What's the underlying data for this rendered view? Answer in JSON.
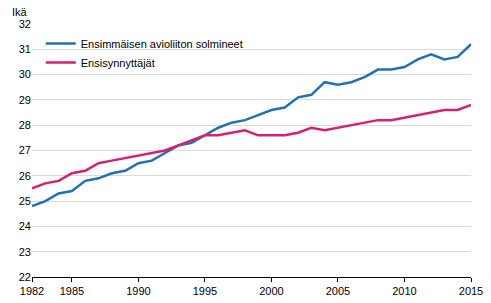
{
  "chart_data": {
    "type": "line",
    "y_label": "Ikä",
    "x": [
      1982,
      1983,
      1984,
      1985,
      1986,
      1987,
      1988,
      1989,
      1990,
      1991,
      1992,
      1993,
      1994,
      1995,
      1996,
      1997,
      1998,
      1999,
      2000,
      2001,
      2002,
      2003,
      2004,
      2005,
      2006,
      2007,
      2008,
      2009,
      2010,
      2011,
      2012,
      2013,
      2014,
      2015
    ],
    "series": [
      {
        "name": "Ensimmäisen avioliiton solmineet",
        "color": "#1f73b4",
        "values": [
          24.8,
          25.0,
          25.3,
          25.4,
          25.8,
          25.9,
          26.1,
          26.2,
          26.5,
          26.6,
          26.9,
          27.2,
          27.3,
          27.6,
          27.9,
          28.1,
          28.2,
          28.4,
          28.6,
          28.7,
          29.1,
          29.2,
          29.7,
          29.6,
          29.7,
          29.9,
          30.2,
          30.2,
          30.3,
          30.6,
          30.8,
          30.6,
          30.7,
          31.2
        ]
      },
      {
        "name": "Ensisynnyttäjät",
        "color": "#d6216f",
        "values": [
          25.5,
          25.7,
          25.8,
          26.1,
          26.2,
          26.5,
          26.6,
          26.7,
          26.8,
          26.9,
          27.0,
          27.2,
          27.4,
          27.6,
          27.6,
          27.7,
          27.8,
          27.6,
          27.6,
          27.6,
          27.7,
          27.9,
          27.8,
          27.9,
          28.0,
          28.1,
          28.2,
          28.2,
          28.3,
          28.4,
          28.5,
          28.6,
          28.6,
          28.8
        ]
      }
    ],
    "xlim": [
      1982,
      2015
    ],
    "xticks": [
      1982,
      1985,
      1990,
      1995,
      2000,
      2005,
      2010,
      2015
    ],
    "ylim": [
      22,
      32
    ],
    "yticks": [
      22,
      23,
      24,
      25,
      26,
      27,
      28,
      29,
      30,
      31,
      32
    ],
    "grid": true,
    "legend": "top left"
  }
}
